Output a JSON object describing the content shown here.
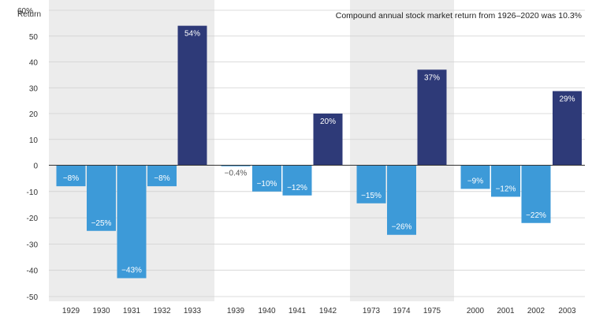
{
  "chart_data": {
    "type": "bar",
    "title": "",
    "ylabel": "Return",
    "ylim": [
      -52,
      62
    ],
    "y_ticks": [
      "60%",
      "50",
      "40",
      "30",
      "20",
      "10",
      "0",
      "-10",
      "-20",
      "-30",
      "-40",
      "-50"
    ],
    "y_tick_values": [
      60,
      50,
      40,
      30,
      20,
      10,
      0,
      -10,
      -20,
      -30,
      -40,
      -50
    ],
    "annotation": "Compound annual stock market return from 1926–2020 was 10.3%",
    "groups": [
      {
        "shaded": true,
        "bars": [
          {
            "year": "1929",
            "value": -8,
            "label": "−8%"
          },
          {
            "year": "1930",
            "value": -25,
            "label": "−25%"
          },
          {
            "year": "1931",
            "value": -43,
            "label": "−43%"
          },
          {
            "year": "1932",
            "value": -8,
            "label": "−8%"
          },
          {
            "year": "1933",
            "value": 54,
            "label": "54%"
          }
        ]
      },
      {
        "shaded": false,
        "bars": [
          {
            "year": "1939",
            "value": -0.4,
            "label": "−0.4%"
          },
          {
            "year": "1940",
            "value": -10,
            "label": "−10%"
          },
          {
            "year": "1941",
            "value": -11.5,
            "label": "−12%"
          },
          {
            "year": "1942",
            "value": 20,
            "label": "20%"
          }
        ]
      },
      {
        "shaded": true,
        "bars": [
          {
            "year": "1973",
            "value": -14.5,
            "label": "−15%"
          },
          {
            "year": "1974",
            "value": -26.5,
            "label": "−26%"
          },
          {
            "year": "1975",
            "value": 37,
            "label": "37%"
          }
        ]
      },
      {
        "shaded": false,
        "bars": [
          {
            "year": "2000",
            "value": -9,
            "label": "−9%"
          },
          {
            "year": "2001",
            "value": -12,
            "label": "−12%"
          },
          {
            "year": "2002",
            "value": -22,
            "label": "−22%"
          },
          {
            "year": "2003",
            "value": 28.7,
            "label": "29%"
          }
        ]
      }
    ],
    "colors": {
      "negative": "#3d9ad8",
      "positive": "#2e3a78",
      "shade": "#ececec",
      "grid": "#d0d0d0",
      "zero": "#333333"
    },
    "grid": true
  }
}
